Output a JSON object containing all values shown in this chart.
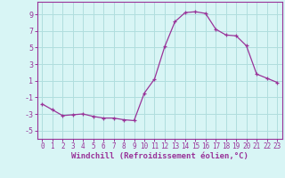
{
  "x": [
    0,
    1,
    2,
    3,
    4,
    5,
    6,
    7,
    8,
    9,
    10,
    11,
    12,
    13,
    14,
    15,
    16,
    17,
    18,
    19,
    20,
    21,
    22,
    23
  ],
  "y": [
    -1.8,
    -2.5,
    -3.2,
    -3.1,
    -3.0,
    -3.3,
    -3.5,
    -3.5,
    -3.7,
    -3.8,
    -0.5,
    1.2,
    5.1,
    8.1,
    9.2,
    9.3,
    9.1,
    7.2,
    6.5,
    6.4,
    5.2,
    1.8,
    1.3,
    0.8
  ],
  "line_color": "#993399",
  "marker_color": "#993399",
  "bg_color": "#d8f5f5",
  "grid_color": "#b0dede",
  "axis_color": "#993399",
  "spine_color": "#993399",
  "xlabel": "Windchill (Refroidissement éolien,°C)",
  "xlabel_color": "#993399",
  "ylim": [
    -6,
    10.5
  ],
  "xlim": [
    -0.5,
    23.5
  ],
  "yticks": [
    -5,
    -3,
    -1,
    1,
    3,
    5,
    7,
    9
  ],
  "xticks": [
    0,
    1,
    2,
    3,
    4,
    5,
    6,
    7,
    8,
    9,
    10,
    11,
    12,
    13,
    14,
    15,
    16,
    17,
    18,
    19,
    20,
    21,
    22,
    23
  ]
}
